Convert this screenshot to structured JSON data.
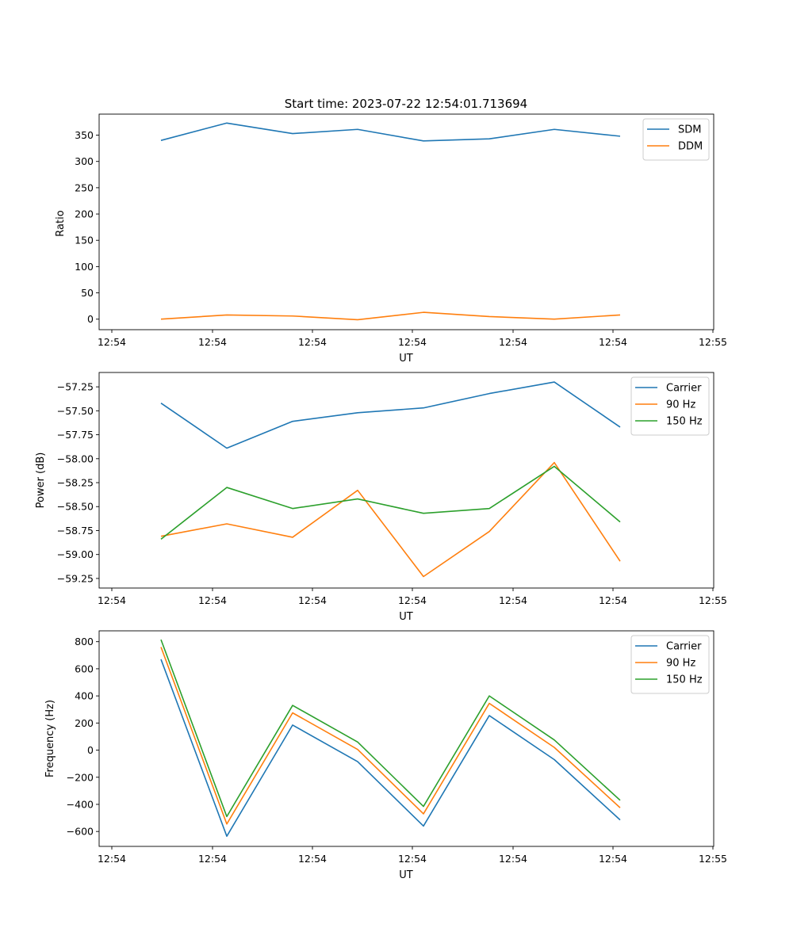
{
  "chart_data": [
    {
      "type": "line",
      "title": "Start time: 2023-07-22 12:54:01.713694",
      "xlabel": "UT",
      "ylabel": "Ratio",
      "x_ticks": [
        "12:54",
        "12:54",
        "12:54",
        "12:54",
        "12:54",
        "12:54",
        "12:55"
      ],
      "y_ticks": [
        "0",
        "50",
        "100",
        "150",
        "200",
        "250",
        "300",
        "350"
      ],
      "ylim": [
        -20,
        390
      ],
      "series": [
        {
          "name": "SDM",
          "color": "#1f77b4",
          "values": [
            340,
            373,
            353,
            361,
            339,
            343,
            361,
            348
          ]
        },
        {
          "name": "DDM",
          "color": "#ff7f0e",
          "values": [
            0,
            8,
            6,
            -1,
            13,
            5,
            0,
            8
          ]
        }
      ]
    },
    {
      "type": "line",
      "title": "",
      "xlabel": "UT",
      "ylabel": "Power (dB)",
      "x_ticks": [
        "12:54",
        "12:54",
        "12:54",
        "12:54",
        "12:54",
        "12:54",
        "12:55"
      ],
      "y_ticks": [
        "−59.25",
        "−59.00",
        "−58.75",
        "−58.50",
        "−58.25",
        "−58.00",
        "−57.75",
        "−57.50",
        "−57.25"
      ],
      "ylim": [
        -59.35,
        -57.1
      ],
      "series": [
        {
          "name": "Carrier",
          "color": "#1f77b4",
          "values": [
            -57.42,
            -57.89,
            -57.61,
            -57.52,
            -57.47,
            -57.32,
            -57.2,
            -57.67
          ]
        },
        {
          "name": "90 Hz",
          "color": "#ff7f0e",
          "values": [
            -58.81,
            -58.68,
            -58.82,
            -58.33,
            -59.23,
            -58.76,
            -58.04,
            -59.07
          ]
        },
        {
          "name": "150 Hz",
          "color": "#2ca02c",
          "values": [
            -58.84,
            -58.3,
            -58.52,
            -58.42,
            -58.57,
            -58.52,
            -58.08,
            -58.66
          ]
        }
      ]
    },
    {
      "type": "line",
      "title": "",
      "xlabel": "UT",
      "ylabel": "Frequency (Hz)",
      "x_ticks": [
        "12:54",
        "12:54",
        "12:54",
        "12:54",
        "12:54",
        "12:54",
        "12:55"
      ],
      "y_ticks": [
        "−600",
        "−400",
        "−200",
        "0",
        "200",
        "400",
        "600",
        "800"
      ],
      "ylim": [
        -710,
        880
      ],
      "series": [
        {
          "name": "Carrier",
          "color": "#1f77b4",
          "values": [
            670,
            -635,
            185,
            -85,
            -560,
            255,
            -70,
            -515
          ]
        },
        {
          "name": "90 Hz",
          "color": "#ff7f0e",
          "values": [
            760,
            -545,
            275,
            5,
            -470,
            345,
            20,
            -425
          ]
        },
        {
          "name": "150 Hz",
          "color": "#2ca02c",
          "values": [
            815,
            -490,
            330,
            60,
            -415,
            400,
            75,
            -370
          ]
        }
      ]
    }
  ]
}
